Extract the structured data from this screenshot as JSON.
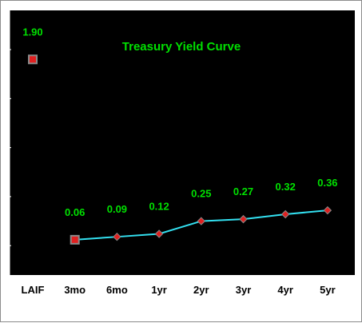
{
  "chart_data": {
    "type": "line",
    "title": "Treasury Yield Curve",
    "xlabel": "",
    "ylabel": "",
    "categories": [
      "LAIF",
      "3mo",
      "6mo",
      "1yr",
      "2yr",
      "3yr",
      "4yr",
      "5yr"
    ],
    "values": [
      1.9,
      0.06,
      0.09,
      0.12,
      0.25,
      0.27,
      0.32,
      0.36
    ],
    "value_labels": [
      "1.90",
      "0.06",
      "0.09",
      "0.12",
      "0.25",
      "0.27",
      "0.32",
      "0.36"
    ],
    "ylim": [
      -0.3,
      2.4
    ],
    "y_ticks": [
      0,
      0.5,
      1.0,
      1.5,
      2.0
    ],
    "y_tick_labels_shown": false,
    "grid": false,
    "legend": "none",
    "laif_standalone": true,
    "colors": {
      "plot_background": "#000000",
      "line": "#33e0f0",
      "marker_fill": "#e02020",
      "marker_border": "#8a8a8a",
      "label_text": "#00e000",
      "tick_text": "#000000"
    }
  }
}
